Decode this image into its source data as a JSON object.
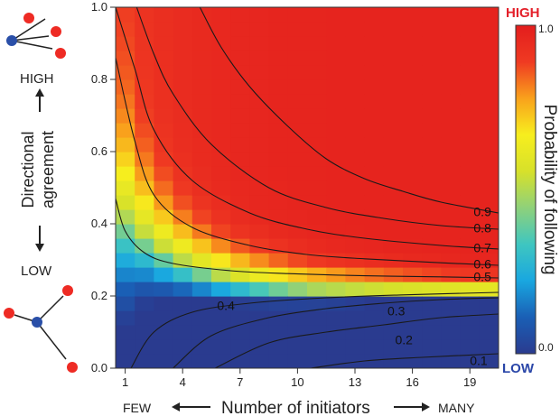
{
  "chart_data": {
    "type": "heatmap",
    "x_ticks": [
      1,
      4,
      7,
      10,
      13,
      16,
      19
    ],
    "y_ticks": [
      "0.0",
      "0.2",
      "0.4",
      "0.6",
      "0.8",
      "1.0"
    ],
    "xlim": [
      1,
      21
    ],
    "ylim": [
      0,
      1
    ],
    "xlabel": "Number of initiators",
    "x_low_label": "FEW",
    "x_high_label": "MANY",
    "ylabel_line1": "Directional",
    "ylabel_line2": "agreement",
    "y_high_label": "HIGH",
    "y_low_label": "LOW",
    "colorbar": {
      "label": "Probability of following",
      "top_label": "HIGH",
      "bottom_label": "LOW",
      "max_tick": "1.0",
      "min_tick": "0.0",
      "range": [
        0,
        1
      ],
      "colors": [
        "#2a3b8f",
        "#1a5fb5",
        "#19a7e0",
        "#3fc6c0",
        "#8fd17a",
        "#d7e12a",
        "#f7ee1e",
        "#f9a11c",
        "#ef3a22",
        "#e31d1d"
      ]
    },
    "contours": [
      {
        "level": "0.1",
        "points": [
          [
            11.2,
            0.0
          ],
          [
            14,
            0.02
          ],
          [
            17,
            0.03
          ],
          [
            21,
            0.04
          ]
        ],
        "label_at": [
          19.5,
          0.018
        ]
      },
      {
        "level": "0.2",
        "points": [
          [
            6.2,
            0.0
          ],
          [
            9,
            0.07
          ],
          [
            12,
            0.1
          ],
          [
            15,
            0.12
          ],
          [
            18,
            0.14
          ],
          [
            21,
            0.15
          ]
        ],
        "label_at": [
          15.6,
          0.075
        ]
      },
      {
        "level": "0.3",
        "points": [
          [
            4.0,
            0.0
          ],
          [
            6,
            0.09
          ],
          [
            9,
            0.14
          ],
          [
            12,
            0.165
          ],
          [
            15,
            0.18
          ],
          [
            18,
            0.19
          ],
          [
            21,
            0.195
          ]
        ],
        "label_at": [
          15.2,
          0.155
        ]
      },
      {
        "level": "0.4",
        "points": [
          [
            1.8,
            0.0
          ],
          [
            3,
            0.1
          ],
          [
            5,
            0.155
          ],
          [
            8,
            0.18
          ],
          [
            12,
            0.195
          ],
          [
            16,
            0.203
          ],
          [
            21,
            0.21
          ]
        ],
        "label_at": [
          6.3,
          0.17
        ]
      },
      {
        "level": "0.5",
        "points": [
          [
            1.0,
            0.47
          ],
          [
            1.5,
            0.38
          ],
          [
            2.5,
            0.32
          ],
          [
            4,
            0.29
          ],
          [
            7,
            0.27
          ],
          [
            10,
            0.262
          ],
          [
            14,
            0.256
          ],
          [
            18,
            0.253
          ],
          [
            21,
            0.25
          ]
        ],
        "label_at": [
          19.7,
          0.25
        ]
      },
      {
        "level": "0.6",
        "points": [
          [
            1.0,
            0.86
          ],
          [
            2,
            0.63
          ],
          [
            3,
            0.48
          ],
          [
            5,
            0.39
          ],
          [
            8,
            0.34
          ],
          [
            11,
            0.315
          ],
          [
            14,
            0.303
          ],
          [
            18,
            0.292
          ],
          [
            21,
            0.285
          ]
        ],
        "label_at": [
          19.7,
          0.285
        ]
      },
      {
        "level": "0.7",
        "points": [
          [
            1.0,
            1.0
          ],
          [
            2,
            0.83
          ],
          [
            3,
            0.66
          ],
          [
            5,
            0.52
          ],
          [
            8,
            0.43
          ],
          [
            11,
            0.385
          ],
          [
            14,
            0.36
          ],
          [
            18,
            0.34
          ],
          [
            21,
            0.33
          ]
        ],
        "label_at": [
          19.7,
          0.33
        ]
      },
      {
        "level": "0.8",
        "points": [
          [
            2.1,
            1.0
          ],
          [
            3,
            0.87
          ],
          [
            4,
            0.76
          ],
          [
            6,
            0.62
          ],
          [
            9,
            0.5
          ],
          [
            12,
            0.445
          ],
          [
            15,
            0.415
          ],
          [
            18,
            0.395
          ],
          [
            21,
            0.385
          ]
        ],
        "label_at": [
          19.7,
          0.385
        ]
      },
      {
        "level": "0.9",
        "points": [
          [
            5.4,
            1.0
          ],
          [
            6.5,
            0.89
          ],
          [
            8,
            0.78
          ],
          [
            10,
            0.67
          ],
          [
            12,
            0.58
          ],
          [
            14,
            0.525
          ],
          [
            16,
            0.49
          ],
          [
            18,
            0.46
          ],
          [
            21,
            0.43
          ]
        ],
        "label_at": [
          19.7,
          0.43
        ]
      }
    ]
  }
}
